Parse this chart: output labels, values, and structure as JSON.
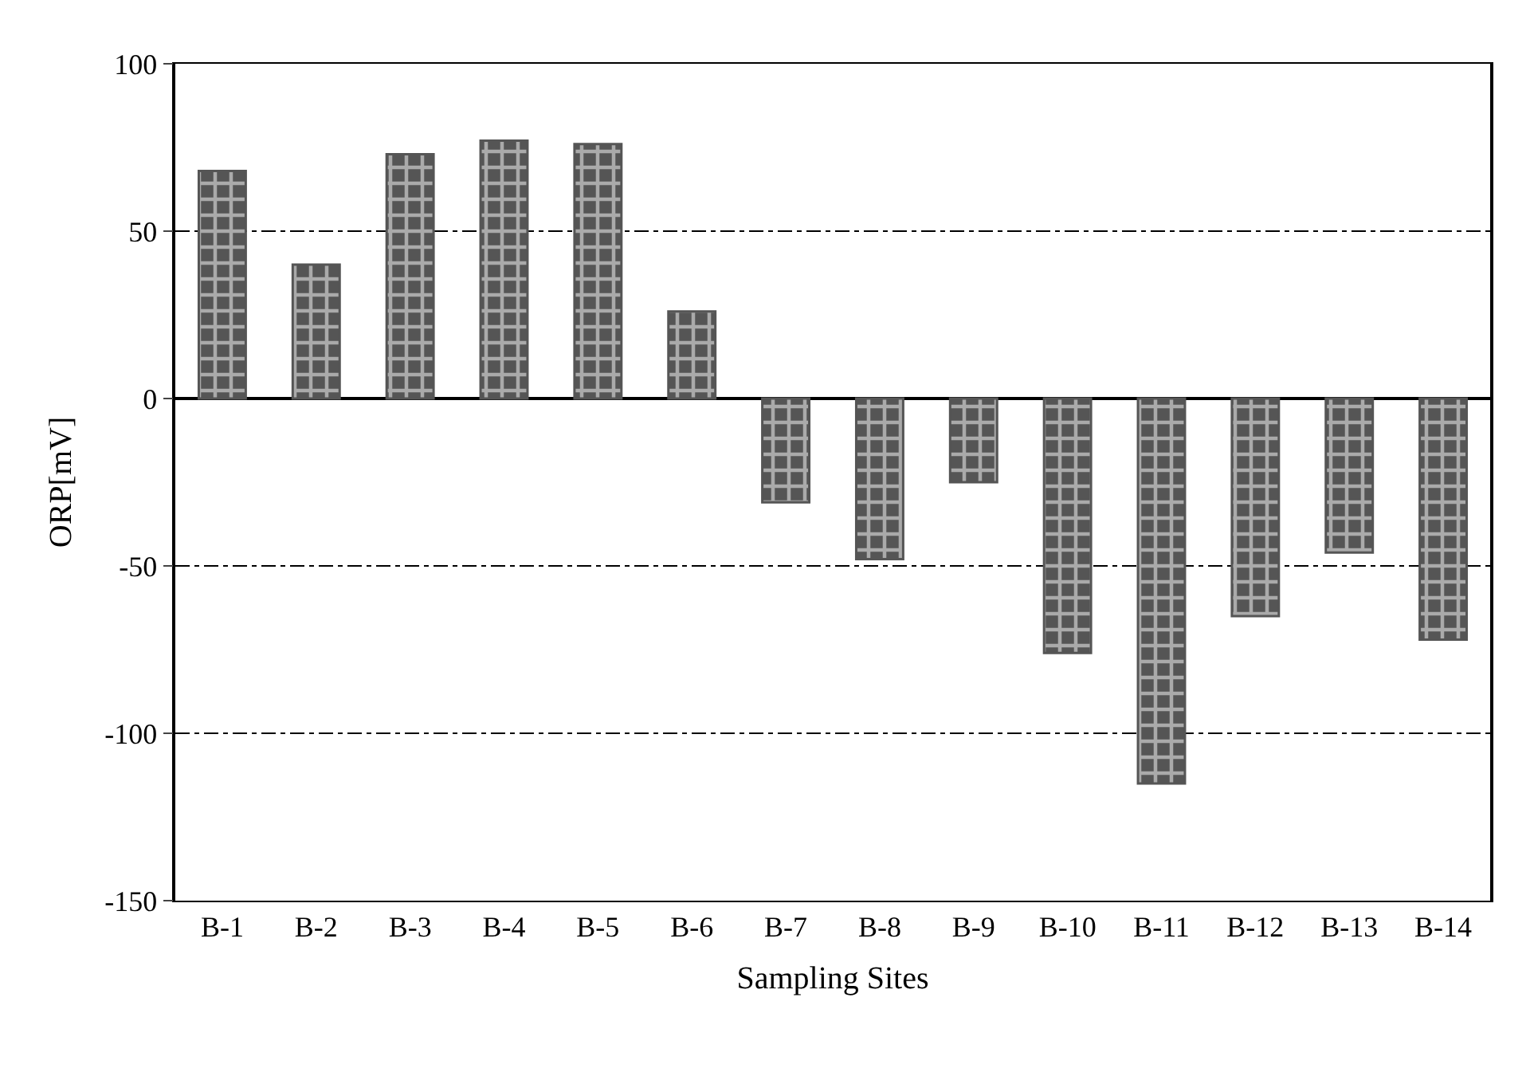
{
  "chart_data": {
    "type": "bar",
    "xlabel": "Sampling Sites",
    "ylabel": "ORP[mV]",
    "categories": [
      "B-1",
      "B-2",
      "B-3",
      "B-4",
      "B-5",
      "B-6",
      "B-7",
      "B-8",
      "B-9",
      "B-10",
      "B-11",
      "B-12",
      "B-13",
      "B-14"
    ],
    "values": [
      68,
      40,
      73,
      77,
      76,
      26,
      -31,
      -48,
      -25,
      -76,
      -115,
      -65,
      -46,
      -72
    ],
    "color": "#555555",
    "ylim": [
      -150,
      100
    ],
    "yticks": [
      -150,
      -100,
      -50,
      0,
      50,
      100
    ],
    "grid": "y",
    "legend": false
  }
}
